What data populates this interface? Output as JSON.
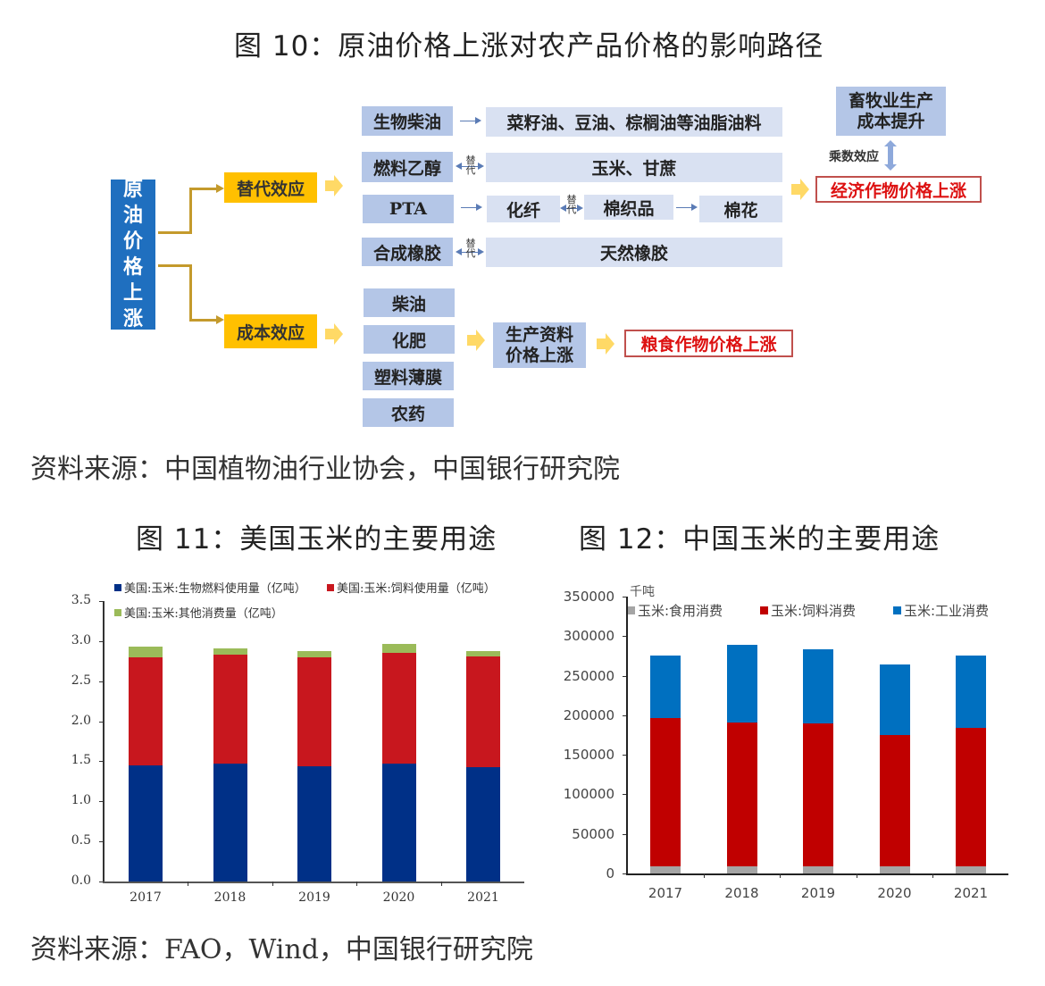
{
  "figure10": {
    "title": "图 10：原油价格上涨对农产品价格的影响路径",
    "root": "原油价格上涨",
    "root_chars": [
      "原",
      "油",
      "价",
      "格",
      "上",
      "涨"
    ],
    "effects": {
      "substitution": "替代效应",
      "cost": "成本效应"
    },
    "substitution_rows": [
      {
        "source": "生物柴油",
        "link": "arrow",
        "target": "菜籽油、豆油、棕榈油等油脂油料"
      },
      {
        "source": "燃料乙醇",
        "link": "替代",
        "target": "玉米、甘蔗"
      },
      {
        "source": "PTA",
        "link": "arrow",
        "chain": [
          "化纤",
          "棉织品",
          "棉花"
        ],
        "chain_link": "替代"
      },
      {
        "source": "合成橡胶",
        "link": "替代",
        "target": "天然橡胶"
      }
    ],
    "substitution_tag": "替代",
    "livestock_box": "畜牧业生产成本提升",
    "livestock_lines": [
      "畜牧业生产",
      "成本提升"
    ],
    "multiplier_label": "乘数效应",
    "cash_crop_result": "经济作物价格上涨",
    "cost_items": [
      "柴油",
      "化肥",
      "塑料薄膜",
      "农药"
    ],
    "means_of_production": "生产资料价格上涨",
    "means_lines": [
      "生产资料",
      "价格上涨"
    ],
    "grain_result": "粮食作物价格上涨",
    "source": "资料来源：中国植物油行业协会，中国银行研究院"
  },
  "figure11": {
    "title": "图 11：美国玉米的主要用途"
  },
  "figure12": {
    "title": "图 12：中国玉米的主要用途"
  },
  "bottom_source": "资料来源：FAO，Wind，中国银行研究院",
  "chart_data": [
    {
      "type": "bar",
      "stacked": true,
      "title": "图 11：美国玉米的主要用途",
      "xlabel": "",
      "ylabel": "",
      "categories": [
        "2017",
        "2018",
        "2019",
        "2020",
        "2021"
      ],
      "series": [
        {
          "name": "美国:玉米:生物燃料使用量（亿吨）",
          "color": "#003087",
          "values": [
            1.45,
            1.47,
            1.44,
            1.47,
            1.43
          ]
        },
        {
          "name": "美国:玉米:饲料使用量（亿吨）",
          "color": "#c8171e",
          "values": [
            1.35,
            1.36,
            1.36,
            1.38,
            1.38
          ]
        },
        {
          "name": "美国:玉米:其他消费量（亿吨）",
          "color": "#9bbb59",
          "values": [
            0.13,
            0.08,
            0.08,
            0.11,
            0.07
          ]
        }
      ],
      "ylim": [
        0,
        3.5
      ],
      "yticks": [
        "0.0",
        "0.5",
        "1.0",
        "1.5",
        "2.0",
        "2.5",
        "3.0",
        "3.5"
      ],
      "grid": false,
      "legend_position": "top"
    },
    {
      "type": "bar",
      "stacked": true,
      "title": "图 12：中国玉米的主要用途",
      "unit_label": "千吨",
      "xlabel": "",
      "ylabel": "千吨",
      "categories": [
        "2017",
        "2018",
        "2019",
        "2020",
        "2021"
      ],
      "series": [
        {
          "name": "玉米:食用消费",
          "color": "#a5a5a5",
          "values": [
            9000,
            9000,
            9000,
            9000,
            9000
          ]
        },
        {
          "name": "玉米:饲料消费",
          "color": "#c00000",
          "values": [
            187000,
            182000,
            181000,
            166000,
            175000
          ]
        },
        {
          "name": "玉米:工业消费",
          "color": "#0070c0",
          "values": [
            80000,
            98000,
            93000,
            89000,
            91000
          ]
        }
      ],
      "ylim": [
        0,
        350000
      ],
      "yticks": [
        "0",
        "50000",
        "100000",
        "150000",
        "200000",
        "250000",
        "300000",
        "350000"
      ],
      "grid": false,
      "legend_position": "top"
    }
  ]
}
